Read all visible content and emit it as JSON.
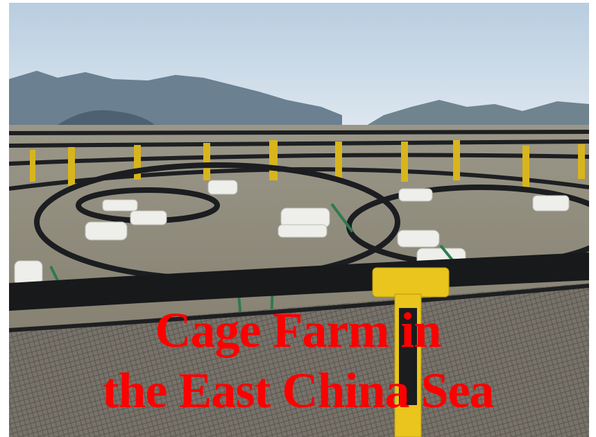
{
  "photo": {
    "subject": "cage-farm-photo",
    "colors": {
      "sky": "#c9d9e8",
      "mountain": "#5f7587",
      "water": "#8c8878",
      "pipe": "#1a1c1e",
      "float": "#f0f0ec",
      "bracket": "#e6c21a",
      "net": "#6f6b62"
    }
  },
  "caption": {
    "line1": "Cage Farm in",
    "line2": "the East China Sea",
    "color": "#ff0000"
  }
}
